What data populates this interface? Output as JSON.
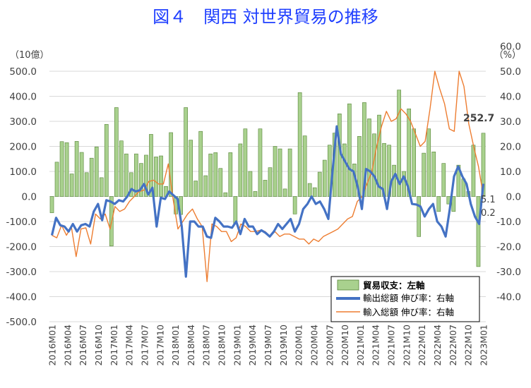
{
  "chart_data": {
    "type": "bar+line",
    "title": "図４　関西 対世界貿易の推移",
    "left_unit": "（10億）",
    "right_unit": "（%）",
    "left_ylim": [
      -500,
      600
    ],
    "right_ylim": [
      -40,
      60
    ],
    "left_ticks": [
      "500.0",
      "400.0",
      "300.0",
      "200.0",
      "100.0",
      "0.0",
      "-100.0",
      "-200.0",
      "-300.0",
      "-400.0",
      "-500.0"
    ],
    "right_ticks": [
      "60.0",
      "50.0",
      "40.0",
      "30.0",
      "20.0",
      "10.0",
      "0.0",
      "-10.0",
      "-20.0",
      "-30.0",
      "-40.0"
    ],
    "x_tick_labels": [
      "2016M01",
      "2016M04",
      "2016M07",
      "2016M10",
      "2017M01",
      "2017M04",
      "2017M07",
      "2017M10",
      "2018M01",
      "2018M04",
      "2018M07",
      "2018M10",
      "2019M01",
      "2019M04",
      "2019M07",
      "2019M10",
      "2020M01",
      "2020M04",
      "2020M07",
      "2020M10",
      "2021M01",
      "2021M04",
      "2021M07",
      "2021M10",
      "2022M01",
      "2022M04",
      "2022M07",
      "2022M10",
      "2023M01"
    ],
    "legend": [
      "貿易収支：左軸",
      "輸出総額 伸び率：右軸",
      "輸入総額 伸び率：右軸"
    ],
    "legend_position": "bottom-right",
    "annotations": {
      "bar_last": "252.7",
      "export_last": "5.1",
      "import_last": "0.2"
    },
    "colors": {
      "bar_fill": "#a9d18e",
      "bar_stroke": "#548235",
      "export": "#4472c4",
      "import": "#ed7d31",
      "title": "#1f3fff"
    },
    "series": [
      {
        "name": "貿易収支：左軸",
        "axis": "left",
        "values": [
          -65,
          137,
          219,
          215,
          90,
          220,
          176,
          95,
          153,
          198,
          75,
          288,
          -198,
          355,
          222,
          170,
          95,
          170,
          132,
          165,
          248,
          158,
          162,
          40,
          255,
          -70,
          -72,
          355,
          225,
          62,
          260,
          83,
          170,
          175,
          112,
          15,
          175,
          -110,
          210,
          270,
          100,
          20,
          270,
          65,
          115,
          200,
          190,
          30,
          190,
          -70,
          415,
          242,
          52,
          35,
          97,
          145,
          205,
          253,
          330,
          210,
          370,
          130,
          240,
          375,
          310,
          250,
          325,
          212,
          205,
          125,
          425,
          100,
          350,
          270,
          -160,
          173,
          270,
          178,
          -60,
          132,
          -30,
          -60,
          125,
          70,
          20,
          205,
          -280,
          252.7
        ]
      },
      {
        "name": "輸出総額 伸び率：右軸",
        "axis": "right",
        "values": [
          -15.5,
          -8.5,
          -11.5,
          -12,
          -14,
          -11,
          -14,
          -11.5,
          -11,
          -12,
          -6,
          -3,
          -9.5,
          -1.5,
          -2,
          -3,
          -1.5,
          -2,
          0,
          3,
          2,
          2.5,
          5,
          0.8,
          3.5,
          -12,
          -0.5,
          -1,
          2,
          0.5,
          -1,
          -12,
          -32,
          -10,
          -10,
          -12,
          -12,
          -16,
          -16.5,
          -8.5,
          -10,
          -12,
          -12,
          -12.5,
          -10,
          -15,
          -9,
          -12,
          -12,
          -15,
          -13.5,
          -14.5,
          -16,
          -14,
          -11,
          -13,
          -11,
          -9,
          -14,
          -11,
          -5,
          -3,
          0,
          -3,
          -2,
          -5,
          -9,
          10,
          28,
          17,
          14,
          11,
          10,
          4,
          -5,
          11,
          10,
          8,
          4,
          3,
          -5,
          6,
          9,
          5,
          8,
          4,
          -3,
          -3.2,
          -4,
          -8,
          -5,
          -3,
          -10,
          -12,
          -16,
          -5,
          8,
          12,
          8,
          5,
          -3,
          -8,
          -11,
          5.1
        ]
      },
      {
        "name": "輸入総額 伸び率：右軸",
        "axis": "right",
        "values": [
          -15.5,
          -16.5,
          -11.5,
          -15.5,
          -12,
          -24,
          -13,
          -12.5,
          -19,
          -7,
          -9,
          -7,
          -13,
          -4,
          -6,
          -5,
          -2,
          0,
          2,
          2.5,
          6,
          6.5,
          5,
          5,
          13,
          -1,
          -13,
          -10,
          -7,
          -5,
          -9,
          -12,
          -34,
          -11,
          -12,
          -14,
          -14,
          -18,
          -16.5,
          -11,
          -12,
          -14,
          -14,
          -13.5,
          -14,
          -16,
          -14,
          -16,
          -15,
          -15,
          -16,
          -17,
          -17,
          -19,
          -17,
          -18,
          -16,
          -15,
          -14,
          -13,
          -11,
          -9,
          -8,
          -2,
          0,
          5,
          10,
          20,
          28,
          34,
          30,
          31,
          35,
          33,
          30,
          25,
          20,
          22,
          35,
          50,
          43,
          37,
          27,
          26,
          50,
          44,
          29,
          20,
          12,
          0.2
        ]
      }
    ]
  }
}
